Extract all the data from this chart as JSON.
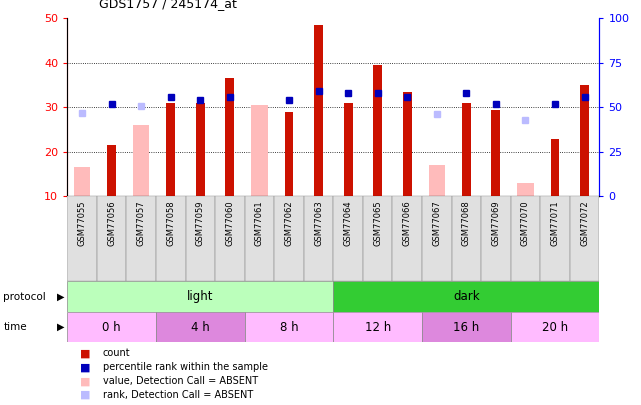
{
  "title": "GDS1757 / 245174_at",
  "samples": [
    "GSM77055",
    "GSM77056",
    "GSM77057",
    "GSM77058",
    "GSM77059",
    "GSM77060",
    "GSM77061",
    "GSM77062",
    "GSM77063",
    "GSM77064",
    "GSM77065",
    "GSM77066",
    "GSM77067",
    "GSM77068",
    "GSM77069",
    "GSM77070",
    "GSM77071",
    "GSM77072"
  ],
  "count_values": [
    null,
    21.5,
    null,
    31.0,
    31.0,
    36.5,
    null,
    29.0,
    48.5,
    31.0,
    39.5,
    33.5,
    null,
    31.0,
    29.5,
    null,
    23.0,
    35.0
  ],
  "rank_pct": [
    null,
    52.0,
    null,
    56.0,
    54.0,
    56.0,
    null,
    54.0,
    59.0,
    58.0,
    58.0,
    56.0,
    null,
    58.0,
    52.0,
    null,
    52.0,
    56.0
  ],
  "absent_count_values": [
    16.5,
    null,
    26.0,
    null,
    null,
    null,
    30.5,
    null,
    null,
    null,
    null,
    null,
    17.0,
    null,
    null,
    13.0,
    null,
    null
  ],
  "absent_rank_pct": [
    47.0,
    null,
    51.0,
    null,
    null,
    null,
    null,
    null,
    null,
    null,
    null,
    null,
    46.0,
    null,
    null,
    43.0,
    null,
    null
  ],
  "ylim_left": [
    10,
    50
  ],
  "ylim_right": [
    0,
    100
  ],
  "yticks_left": [
    10,
    20,
    30,
    40,
    50
  ],
  "yticks_right": [
    0,
    25,
    50,
    75,
    100
  ],
  "color_count": "#cc1100",
  "color_rank": "#0000bb",
  "color_absent_count": "#ffbbbb",
  "color_absent_rank": "#bbbbff",
  "protocol_groups": [
    {
      "label": "light",
      "start": 0,
      "end": 9,
      "color": "#bbffbb"
    },
    {
      "label": "dark",
      "start": 9,
      "end": 18,
      "color": "#33cc33"
    }
  ],
  "time_groups": [
    {
      "label": "0 h",
      "start": 0,
      "end": 3,
      "color": "#ffbbff"
    },
    {
      "label": "4 h",
      "start": 3,
      "end": 6,
      "color": "#dd88dd"
    },
    {
      "label": "8 h",
      "start": 6,
      "end": 9,
      "color": "#ffbbff"
    },
    {
      "label": "12 h",
      "start": 9,
      "end": 12,
      "color": "#ffbbff"
    },
    {
      "label": "16 h",
      "start": 12,
      "end": 15,
      "color": "#dd88dd"
    },
    {
      "label": "20 h",
      "start": 15,
      "end": 18,
      "color": "#ffbbff"
    }
  ],
  "legend_items": [
    {
      "label": "count",
      "color": "#cc1100"
    },
    {
      "label": "percentile rank within the sample",
      "color": "#0000bb"
    },
    {
      "label": "value, Detection Call = ABSENT",
      "color": "#ffbbbb"
    },
    {
      "label": "rank, Detection Call = ABSENT",
      "color": "#bbbbff"
    }
  ]
}
